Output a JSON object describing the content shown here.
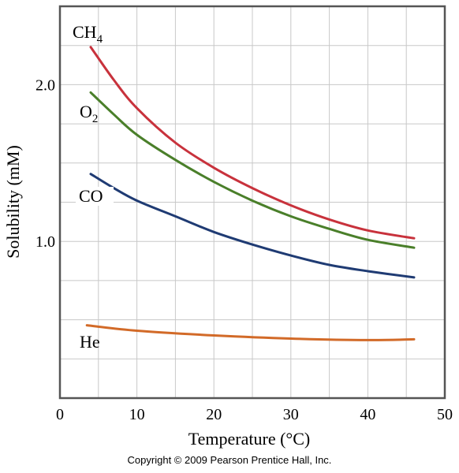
{
  "chart_data": {
    "type": "line",
    "xlabel": "Temperature (°C)",
    "ylabel": "Solubility (mM)",
    "xlim": [
      0,
      50
    ],
    "ylim": [
      0,
      2.5
    ],
    "xticks": [
      0,
      10,
      20,
      30,
      40,
      50
    ],
    "yticks": [
      1.0,
      2.0
    ],
    "grid": true,
    "series": [
      {
        "name": "CH",
        "name_subscript": "4",
        "color": "#c8323c",
        "x": [
          4,
          7,
          10,
          15,
          20,
          25,
          30,
          35,
          40,
          46
        ],
        "y": [
          2.24,
          2.03,
          1.85,
          1.63,
          1.47,
          1.34,
          1.23,
          1.14,
          1.07,
          1.02
        ]
      },
      {
        "name": "O",
        "name_subscript": "2",
        "color": "#4a7f2a",
        "x": [
          4,
          7,
          10,
          15,
          20,
          25,
          30,
          35,
          40,
          46
        ],
        "y": [
          1.95,
          1.81,
          1.68,
          1.52,
          1.38,
          1.26,
          1.16,
          1.08,
          1.01,
          0.96
        ]
      },
      {
        "name": "CO",
        "name_subscript": "",
        "color": "#1f3b73",
        "x": [
          4,
          7,
          10,
          15,
          20,
          25,
          30,
          35,
          40,
          46
        ],
        "y": [
          1.43,
          1.34,
          1.26,
          1.16,
          1.06,
          0.98,
          0.91,
          0.85,
          0.81,
          0.77
        ]
      },
      {
        "name": "He",
        "name_subscript": "",
        "color": "#d26a28",
        "x": [
          3.5,
          10,
          20,
          30,
          40,
          46
        ],
        "y": [
          0.465,
          0.43,
          0.4,
          0.38,
          0.37,
          0.375
        ]
      }
    ]
  },
  "footer": {
    "copyright": "Copyright © 2009 Pearson Prentice Hall, Inc."
  }
}
